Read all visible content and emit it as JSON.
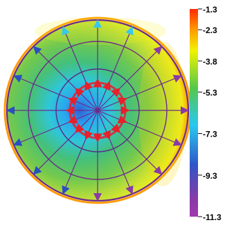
{
  "colorbar": {
    "ticks": [
      {
        "label": "-1.3",
        "value": -1.3
      },
      {
        "label": "-2.3",
        "value": -2.3
      },
      {
        "label": "-3.8",
        "value": -3.8
      },
      {
        "label": "-5.3",
        "value": -5.3
      },
      {
        "label": "-7.3",
        "value": -7.3
      },
      {
        "label": "-9.3",
        "value": -9.3
      },
      {
        "label": "-11.3",
        "value": -11.3
      }
    ],
    "range": [
      -11.3,
      -1.3
    ],
    "colors": {
      "top": "#ff2a00",
      "orange": "#ff9a00",
      "yellow": "#f2f200",
      "green": "#55c84a",
      "cyan": "#28c8f0",
      "blue": "#2f55c8",
      "purple": "#8a3aa6",
      "bottom": "#a03ab0"
    }
  },
  "diagram": {
    "radial_lines": 16,
    "rings": 3,
    "marker_colors": {
      "inner": "#e8202a",
      "outer_left": "#2a4fc0",
      "outer_right": "#8a3aa6",
      "outer_top": "#35c8f0"
    }
  }
}
